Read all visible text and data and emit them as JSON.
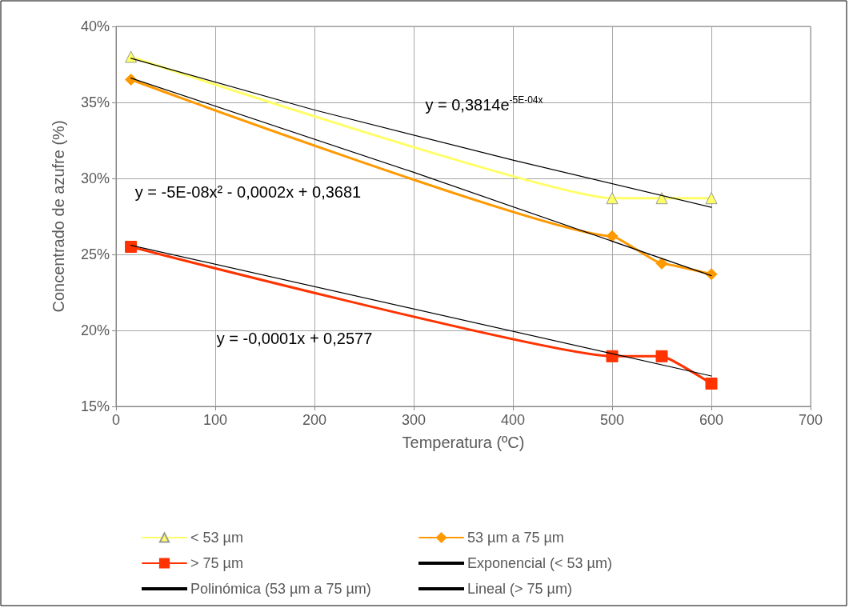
{
  "chart_data": {
    "type": "line",
    "xlabel": "Temperatura (ºC)",
    "ylabel": "Concentrado de azufre (%)",
    "xlim": [
      0,
      700
    ],
    "xticks": [
      0,
      100,
      200,
      300,
      400,
      500,
      600,
      700
    ],
    "ylim": [
      15,
      40
    ],
    "yticks": [
      {
        "value": 15,
        "label": "15%"
      },
      {
        "value": 20,
        "label": "20%"
      },
      {
        "value": 25,
        "label": "25%"
      },
      {
        "value": 30,
        "label": "30%"
      },
      {
        "value": 35,
        "label": "35%"
      },
      {
        "value": 40,
        "label": "40%"
      }
    ],
    "grid": true,
    "legend": "bottom",
    "line_style": "solid",
    "series": [
      {
        "name": "< 53 µm",
        "color": "#ffff66",
        "marker": "triangle",
        "x": [
          15,
          500,
          550,
          600
        ],
        "values": [
          38,
          28.7,
          28.7,
          28.7
        ]
      },
      {
        "name": "53 µm a 75 µm",
        "color": "#ff9900",
        "marker": "diamond",
        "x": [
          15,
          500,
          550,
          600
        ],
        "values": [
          36.5,
          26.2,
          24.4,
          23.7
        ]
      },
      {
        "name": "> 75 µm",
        "color": "#ff3300",
        "marker": "square",
        "x": [
          15,
          500,
          550,
          600
        ],
        "values": [
          25.5,
          18.3,
          18.3,
          16.5
        ]
      },
      {
        "name": "Exponencial (< 53 µm)",
        "color": "#000000",
        "marker": "none",
        "x": [
          15,
          200,
          400,
          600
        ],
        "values": [
          37.9,
          34.5,
          31.2,
          28.1
        ]
      },
      {
        "name": "Polinómica (53 µm a 75 µm)",
        "color": "#000000",
        "marker": "none",
        "x": [
          15,
          300,
          600
        ],
        "values": [
          36.6,
          30.4,
          23.6
        ]
      },
      {
        "name": "Lineal (> 75 µm)",
        "color": "#000000",
        "marker": "none",
        "x": [
          15,
          600
        ],
        "values": [
          25.6,
          17.0
        ]
      }
    ],
    "annotations": [
      "y = 0,3814e$^{-5E-04x}$",
      "y = -5E-08x² - 0,0002x + 0,3681",
      "y = -0,0001x + 0,2577"
    ]
  }
}
